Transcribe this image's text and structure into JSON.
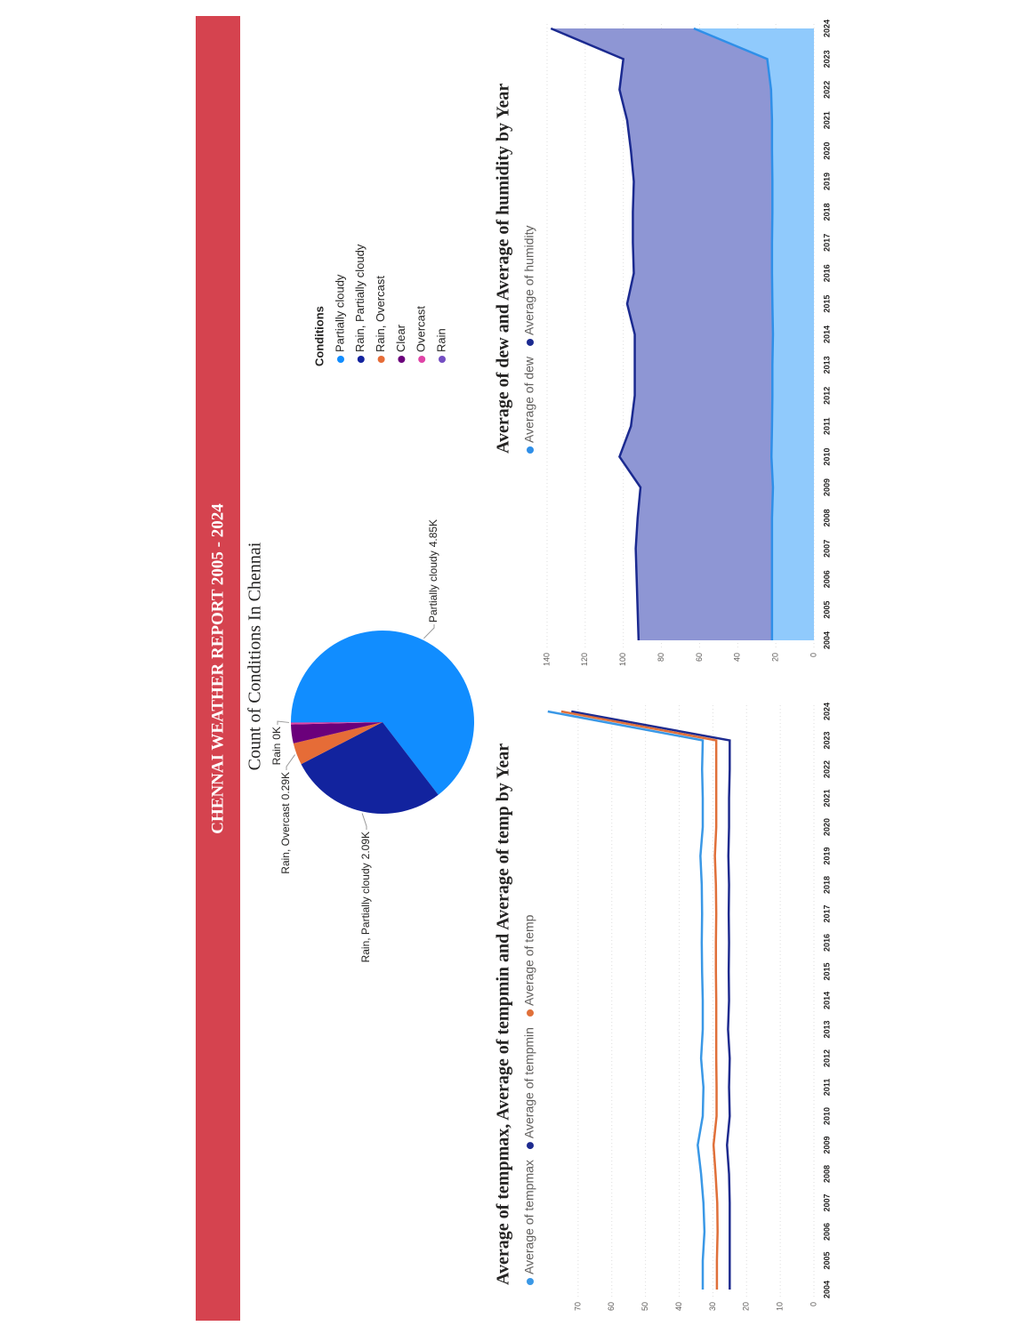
{
  "title": "CHENNAI WEATHER REPORT 2005 - 2024",
  "chart_data": [
    {
      "type": "pie",
      "title": "Count of Conditions In Chennai",
      "legend_title": "Conditions",
      "legend": "right",
      "categories": [
        "Partially cloudy",
        "Rain, Partially cloudy",
        "Rain, Overcast",
        "Clear",
        "Overcast",
        "Rain"
      ],
      "values": [
        4850,
        2090,
        290,
        250,
        20,
        10
      ],
      "value_labels": [
        "4.85K",
        "2.09K",
        "0.29K",
        null,
        null,
        "0K"
      ],
      "colors": [
        "#118dff",
        "#12239e",
        "#e66c37",
        "#6b007b",
        "#e044a7",
        "#744ec2"
      ]
    },
    {
      "type": "line",
      "title": "Average of tempmax, Average of tempmin and Average of temp by Year",
      "legend": "top",
      "categories": [
        "2004",
        "2005",
        "2006",
        "2007",
        "2008",
        "2009",
        "2010",
        "2011",
        "2012",
        "2013",
        "2014",
        "2015",
        "2016",
        "2017",
        "2018",
        "2019",
        "2020",
        "2021",
        "2022",
        "2023",
        "2024"
      ],
      "series": [
        {
          "name": "Average of tempmax",
          "color": "#3a98e6",
          "values": [
            33,
            33,
            32.5,
            32.8,
            33.5,
            34.5,
            33,
            32.8,
            33.5,
            33,
            33,
            33.2,
            33.3,
            33.2,
            33.3,
            33.7,
            33,
            33,
            33.2,
            33,
            79
          ]
        },
        {
          "name": "Average of tempmin",
          "color": "#1e2b8f",
          "values": [
            25,
            25,
            25,
            25,
            25.2,
            25.8,
            25,
            25.2,
            25,
            25.5,
            25.2,
            25.3,
            25.2,
            25.3,
            25.2,
            25.4,
            25.2,
            25.2,
            25,
            25,
            72
          ]
        },
        {
          "name": "Average of temp",
          "color": "#e0703a",
          "values": [
            28.8,
            28.8,
            28.6,
            28.7,
            29.2,
            29.8,
            28.9,
            28.9,
            29,
            29,
            29,
            29.1,
            29.1,
            29,
            29.1,
            29.4,
            29,
            29,
            29,
            29,
            75
          ]
        }
      ],
      "ylim": [
        0,
        80
      ],
      "yticks": [
        0,
        10,
        20,
        30,
        40,
        50,
        60,
        70
      ],
      "grid": true
    },
    {
      "type": "area",
      "title": "Average of dew  and Average of humidity by Year",
      "legend": "top",
      "categories": [
        "2004",
        "2005",
        "2006",
        "2007",
        "2008",
        "2009",
        "2010",
        "2011",
        "2012",
        "2013",
        "2014",
        "2015",
        "2016",
        "2017",
        "2018",
        "2019",
        "2020",
        "2021",
        "2022",
        "2023",
        "2024"
      ],
      "series": [
        {
          "name": "Average of dew",
          "color": "#2f8fe8",
          "fill": "#90cafc",
          "values": [
            22,
            22,
            22,
            22,
            22,
            21.5,
            22.3,
            22,
            21.8,
            21.8,
            21.5,
            21.8,
            22,
            22,
            21.8,
            21.8,
            22,
            22,
            22.5,
            24.5,
            63
          ]
        },
        {
          "name": "Average of humidity",
          "color": "#1b2a90",
          "fill": "#8e96d4",
          "values": [
            92,
            92.5,
            93,
            93.5,
            92.5,
            91,
            102,
            96,
            94,
            94,
            94,
            98,
            94.5,
            95,
            95,
            94.5,
            96,
            98,
            102,
            100,
            138
          ]
        }
      ],
      "ylim": [
        0,
        140
      ],
      "yticks": [
        0,
        20,
        40,
        60,
        80,
        100,
        120,
        140
      ],
      "grid": true
    }
  ]
}
